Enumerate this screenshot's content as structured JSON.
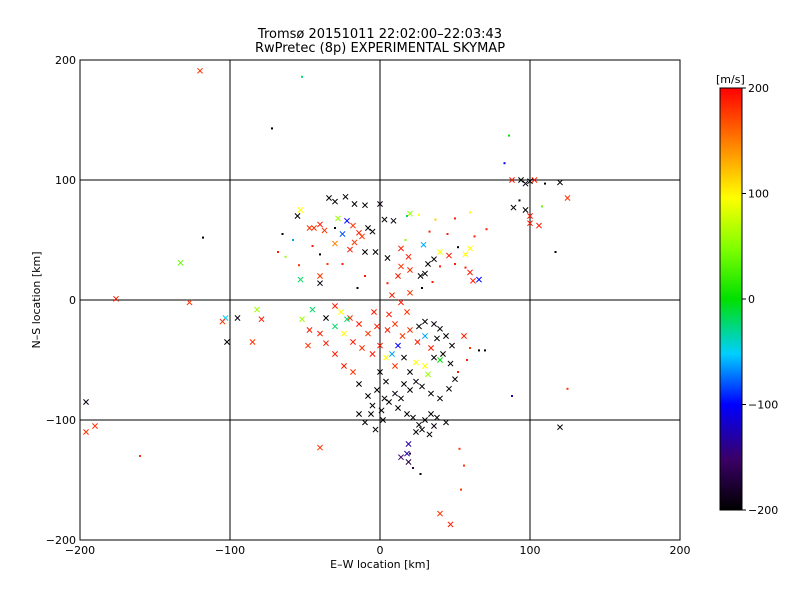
{
  "chart_data": {
    "type": "scatter",
    "title": "Tromsø 20151011 22:02:00–22:03:43",
    "subtitle": "RwPretec (8p) EXPERIMENTAL SKYMAP",
    "xlabel": "E–W location [km]",
    "ylabel": "N–S location [km]",
    "xlim": [
      -200,
      200
    ],
    "ylim": [
      -200,
      200
    ],
    "x_ticks": [
      "−200",
      "−100",
      "0",
      "100",
      "200"
    ],
    "y_ticks": [
      "200",
      "100",
      "0",
      "−100",
      "−200"
    ],
    "grid": true,
    "colorbar": {
      "label": "[m/s]",
      "range": [
        -200,
        200
      ],
      "ticks": [
        "200",
        "100",
        "0",
        "−100",
        "−200"
      ]
    },
    "markers": [
      "cross",
      "dot"
    ],
    "points": [
      [
        -120,
        191,
        180,
        "x"
      ],
      [
        -52,
        186,
        -20,
        "."
      ],
      [
        -72,
        143,
        -200,
        "."
      ],
      [
        86,
        137,
        0,
        "."
      ],
      [
        -118,
        52,
        -200,
        "."
      ],
      [
        -133,
        31,
        40,
        "x"
      ],
      [
        -176,
        1,
        190,
        "x"
      ],
      [
        -127,
        -2,
        180,
        "x"
      ],
      [
        -103,
        -15,
        -50,
        "x"
      ],
      [
        -105,
        -18,
        180,
        "x"
      ],
      [
        -95,
        -15,
        -190,
        "x"
      ],
      [
        -82,
        -8,
        60,
        "x"
      ],
      [
        -79,
        -16,
        190,
        "x"
      ],
      [
        -102,
        -35,
        -200,
        "x"
      ],
      [
        -85,
        -35,
        180,
        "x"
      ],
      [
        -196,
        -85,
        -190,
        "x"
      ],
      [
        -196,
        -110,
        180,
        "x"
      ],
      [
        -190,
        -105,
        180,
        "x"
      ],
      [
        -160,
        -130,
        180,
        "."
      ],
      [
        -40,
        -123,
        180,
        "x"
      ],
      [
        103,
        100,
        190,
        "x"
      ],
      [
        94,
        100,
        -200,
        "x"
      ],
      [
        88,
        100,
        190,
        "x"
      ],
      [
        97,
        97,
        -190,
        "x"
      ],
      [
        100,
        99,
        -200,
        "x"
      ],
      [
        110,
        97,
        -200,
        "."
      ],
      [
        120,
        98,
        -200,
        "x"
      ],
      [
        125,
        85,
        180,
        "x"
      ],
      [
        83,
        114,
        -100,
        "."
      ],
      [
        93,
        83,
        -200,
        "."
      ],
      [
        89,
        77,
        -200,
        "x"
      ],
      [
        97,
        75,
        -200,
        "x"
      ],
      [
        100,
        64,
        190,
        "x"
      ],
      [
        106,
        62,
        190,
        "x"
      ],
      [
        100,
        70,
        190,
        "x"
      ],
      [
        117,
        40,
        -200,
        "."
      ],
      [
        108,
        78,
        40,
        "."
      ],
      [
        120,
        -106,
        -200,
        "x"
      ],
      [
        125,
        -74,
        180,
        "."
      ],
      [
        88,
        -80,
        -130,
        "."
      ],
      [
        54,
        -158,
        180,
        "."
      ],
      [
        40,
        -178,
        180,
        "x"
      ],
      [
        47,
        -187,
        190,
        "x"
      ],
      [
        53,
        -124,
        180,
        "."
      ],
      [
        56,
        -138,
        180,
        "."
      ],
      [
        27,
        -145,
        -200,
        "."
      ],
      [
        19,
        -120,
        -130,
        "x"
      ],
      [
        18,
        -128,
        -130,
        "x"
      ],
      [
        19,
        -135,
        -170,
        "x"
      ],
      [
        20,
        -128,
        -170,
        "."
      ],
      [
        14,
        -131,
        -150,
        "x"
      ],
      [
        22,
        -140,
        -160,
        "."
      ],
      [
        -34,
        85,
        -200,
        "x"
      ],
      [
        -30,
        82,
        -200,
        "x"
      ],
      [
        -23,
        86,
        -200,
        "x"
      ],
      [
        -17,
        80,
        -200,
        "x"
      ],
      [
        -10,
        79,
        -200,
        "x"
      ],
      [
        -44,
        60,
        180,
        "x"
      ],
      [
        -40,
        63,
        190,
        "x"
      ],
      [
        -37,
        58,
        180,
        "x"
      ],
      [
        -47,
        60,
        180,
        "x"
      ],
      [
        -28,
        68,
        60,
        "x"
      ],
      [
        -22,
        66,
        -100,
        "x"
      ],
      [
        -18,
        62,
        180,
        "x"
      ],
      [
        -14,
        56,
        190,
        "x"
      ],
      [
        -17,
        48,
        180,
        "x"
      ],
      [
        -12,
        53,
        180,
        "x"
      ],
      [
        -8,
        60,
        -200,
        "x"
      ],
      [
        -5,
        57,
        -200,
        "x"
      ],
      [
        -25,
        55,
        -80,
        "x"
      ],
      [
        -30,
        47,
        150,
        "x"
      ],
      [
        -20,
        42,
        190,
        "x"
      ],
      [
        -10,
        40,
        -200,
        "x"
      ],
      [
        -3,
        40,
        -200,
        "x"
      ],
      [
        -55,
        70,
        -200,
        "x"
      ],
      [
        -53,
        75,
        100,
        "x"
      ],
      [
        -58,
        50,
        -60,
        "."
      ],
      [
        -63,
        36,
        60,
        "."
      ],
      [
        -68,
        40,
        190,
        "."
      ],
      [
        -53,
        17,
        -20,
        "x"
      ],
      [
        -40,
        20,
        180,
        "x"
      ],
      [
        -40,
        14,
        -190,
        "x"
      ],
      [
        -54,
        29,
        180,
        "."
      ],
      [
        0,
        80,
        -190,
        "x"
      ],
      [
        3,
        67,
        -200,
        "x"
      ],
      [
        9,
        66,
        -190,
        "x"
      ],
      [
        20,
        72,
        60,
        "x"
      ],
      [
        18,
        70,
        -20,
        "."
      ],
      [
        26,
        71,
        100,
        "."
      ],
      [
        37,
        67,
        120,
        "."
      ],
      [
        29,
        46,
        -60,
        "x"
      ],
      [
        17,
        50,
        60,
        "."
      ],
      [
        14,
        43,
        190,
        "x"
      ],
      [
        19,
        36,
        190,
        "x"
      ],
      [
        5,
        35,
        -200,
        "x"
      ],
      [
        14,
        28,
        180,
        "x"
      ],
      [
        20,
        25,
        180,
        "x"
      ],
      [
        27,
        20,
        -200,
        "x"
      ],
      [
        30,
        22,
        -200,
        "x"
      ],
      [
        32,
        30,
        -200,
        "x"
      ],
      [
        12,
        20,
        190,
        "x"
      ],
      [
        36,
        34,
        -200,
        "x"
      ],
      [
        40,
        40,
        100,
        "x"
      ],
      [
        46,
        37,
        190,
        "x"
      ],
      [
        57,
        27,
        190,
        "."
      ],
      [
        60,
        23,
        190,
        "x"
      ],
      [
        66,
        17,
        -100,
        "x"
      ],
      [
        62,
        16,
        190,
        "x"
      ],
      [
        57,
        38,
        100,
        "x"
      ],
      [
        60,
        43,
        100,
        "x"
      ],
      [
        63,
        53,
        190,
        "."
      ],
      [
        71,
        59,
        190,
        "."
      ],
      [
        60,
        73,
        100,
        "."
      ],
      [
        50,
        68,
        190,
        "."
      ],
      [
        -30,
        -5,
        190,
        "x"
      ],
      [
        -20,
        -15,
        180,
        "x"
      ],
      [
        -14,
        -20,
        190,
        "x"
      ],
      [
        -8,
        -28,
        180,
        "x"
      ],
      [
        -2,
        -22,
        190,
        "x"
      ],
      [
        5,
        -25,
        190,
        "x"
      ],
      [
        10,
        -20,
        180,
        "x"
      ],
      [
        15,
        -30,
        180,
        "x"
      ],
      [
        20,
        -25,
        180,
        "x"
      ],
      [
        25,
        -35,
        190,
        "x"
      ],
      [
        30,
        -30,
        -60,
        "x"
      ],
      [
        34,
        -40,
        190,
        "x"
      ],
      [
        38,
        -32,
        -200,
        "x"
      ],
      [
        42,
        -45,
        -200,
        "x"
      ],
      [
        47,
        -53,
        -200,
        "x"
      ],
      [
        36,
        -48,
        -200,
        "x"
      ],
      [
        30,
        -55,
        100,
        "x"
      ],
      [
        24,
        -52,
        100,
        "x"
      ],
      [
        20,
        -60,
        -200,
        "x"
      ],
      [
        16,
        -48,
        -200,
        "x"
      ],
      [
        10,
        -55,
        180,
        "x"
      ],
      [
        4,
        -48,
        100,
        "x"
      ],
      [
        0,
        -38,
        190,
        "x"
      ],
      [
        -5,
        -45,
        190,
        "x"
      ],
      [
        -12,
        -40,
        180,
        "x"
      ],
      [
        -18,
        -35,
        190,
        "x"
      ],
      [
        -24,
        -28,
        100,
        "x"
      ],
      [
        -30,
        -22,
        -20,
        "x"
      ],
      [
        -36,
        -15,
        -200,
        "x"
      ],
      [
        -45,
        -8,
        -20,
        "x"
      ],
      [
        -52,
        -16,
        60,
        "x"
      ],
      [
        -47,
        -25,
        190,
        "x"
      ],
      [
        -40,
        -28,
        190,
        "x"
      ],
      [
        -48,
        -38,
        180,
        "x"
      ],
      [
        -36,
        -36,
        190,
        "x"
      ],
      [
        -30,
        -45,
        190,
        "x"
      ],
      [
        -24,
        -55,
        190,
        "x"
      ],
      [
        -18,
        -60,
        180,
        "x"
      ],
      [
        0,
        -60,
        -200,
        "x"
      ],
      [
        4,
        -68,
        -200,
        "x"
      ],
      [
        -2,
        -75,
        -200,
        "x"
      ],
      [
        3,
        -82,
        -200,
        "x"
      ],
      [
        -5,
        -88,
        -200,
        "x"
      ],
      [
        1,
        -92,
        -200,
        "x"
      ],
      [
        -6,
        -95,
        -200,
        "x"
      ],
      [
        2,
        -100,
        -200,
        "x"
      ],
      [
        -10,
        -102,
        -200,
        "x"
      ],
      [
        -14,
        -95,
        -200,
        "x"
      ],
      [
        -3,
        -108,
        -200,
        "x"
      ],
      [
        6,
        -85,
        -200,
        "x"
      ],
      [
        10,
        -78,
        -190,
        "x"
      ],
      [
        12,
        -90,
        -200,
        "x"
      ],
      [
        18,
        -95,
        -200,
        "x"
      ],
      [
        22,
        -98,
        -200,
        "x"
      ],
      [
        26,
        -104,
        -200,
        "x"
      ],
      [
        30,
        -100,
        -200,
        "x"
      ],
      [
        34,
        -95,
        -200,
        "x"
      ],
      [
        28,
        -108,
        -200,
        "x"
      ],
      [
        33,
        -112,
        -200,
        "x"
      ],
      [
        36,
        -105,
        -190,
        "x"
      ],
      [
        24,
        -110,
        -200,
        "x"
      ],
      [
        38,
        -98,
        -200,
        "x"
      ],
      [
        44,
        -102,
        -200,
        "x"
      ],
      [
        16,
        -70,
        -200,
        "x"
      ],
      [
        20,
        -75,
        -200,
        "x"
      ],
      [
        24,
        -68,
        -190,
        "x"
      ],
      [
        28,
        -72,
        -200,
        "x"
      ],
      [
        34,
        -78,
        -200,
        "x"
      ],
      [
        40,
        -82,
        -200,
        "x"
      ],
      [
        46,
        -74,
        -200,
        "x"
      ],
      [
        50,
        -66,
        -200,
        "x"
      ],
      [
        14,
        -82,
        -200,
        "x"
      ],
      [
        -8,
        -80,
        -200,
        "x"
      ],
      [
        -14,
        -70,
        -200,
        "x"
      ],
      [
        8,
        -45,
        -60,
        "x"
      ],
      [
        12,
        -38,
        -100,
        "x"
      ],
      [
        26,
        -22,
        -200,
        "x"
      ],
      [
        30,
        -18,
        -200,
        "x"
      ],
      [
        36,
        -20,
        -190,
        "x"
      ],
      [
        40,
        -24,
        -200,
        "x"
      ],
      [
        44,
        -30,
        -200,
        "x"
      ],
      [
        48,
        -38,
        -200,
        "x"
      ],
      [
        40,
        -50,
        0,
        "x"
      ],
      [
        32,
        -62,
        60,
        "x"
      ],
      [
        -22,
        -16,
        -20,
        "x"
      ],
      [
        -26,
        -10,
        100,
        "x"
      ],
      [
        -4,
        -10,
        190,
        "x"
      ],
      [
        6,
        -12,
        190,
        "x"
      ],
      [
        18,
        -10,
        180,
        "x"
      ],
      [
        14,
        -2,
        190,
        "x"
      ],
      [
        8,
        4,
        190,
        "x"
      ],
      [
        20,
        6,
        180,
        "x"
      ],
      [
        28,
        10,
        -200,
        "."
      ],
      [
        66,
        -42,
        -200,
        "."
      ],
      [
        70,
        -42,
        -200,
        "."
      ],
      [
        56,
        -30,
        190,
        "x"
      ],
      [
        60,
        -40,
        180,
        "."
      ],
      [
        58,
        -50,
        190,
        "."
      ],
      [
        52,
        -60,
        190,
        "."
      ],
      [
        -30,
        60,
        -200,
        "."
      ],
      [
        -25,
        30,
        190,
        "."
      ],
      [
        -35,
        30,
        180,
        "."
      ],
      [
        -10,
        20,
        190,
        "."
      ],
      [
        5,
        14,
        190,
        "."
      ],
      [
        -15,
        10,
        -200,
        "."
      ],
      [
        45,
        55,
        190,
        "."
      ],
      [
        33,
        57,
        190,
        "."
      ],
      [
        52,
        44,
        -200,
        "."
      ],
      [
        40,
        28,
        190,
        "."
      ],
      [
        50,
        30,
        190,
        "."
      ],
      [
        35,
        15,
        190,
        "."
      ],
      [
        -45,
        45,
        190,
        "."
      ],
      [
        -40,
        38,
        -200,
        "."
      ],
      [
        -65,
        55,
        -200,
        "."
      ]
    ]
  }
}
